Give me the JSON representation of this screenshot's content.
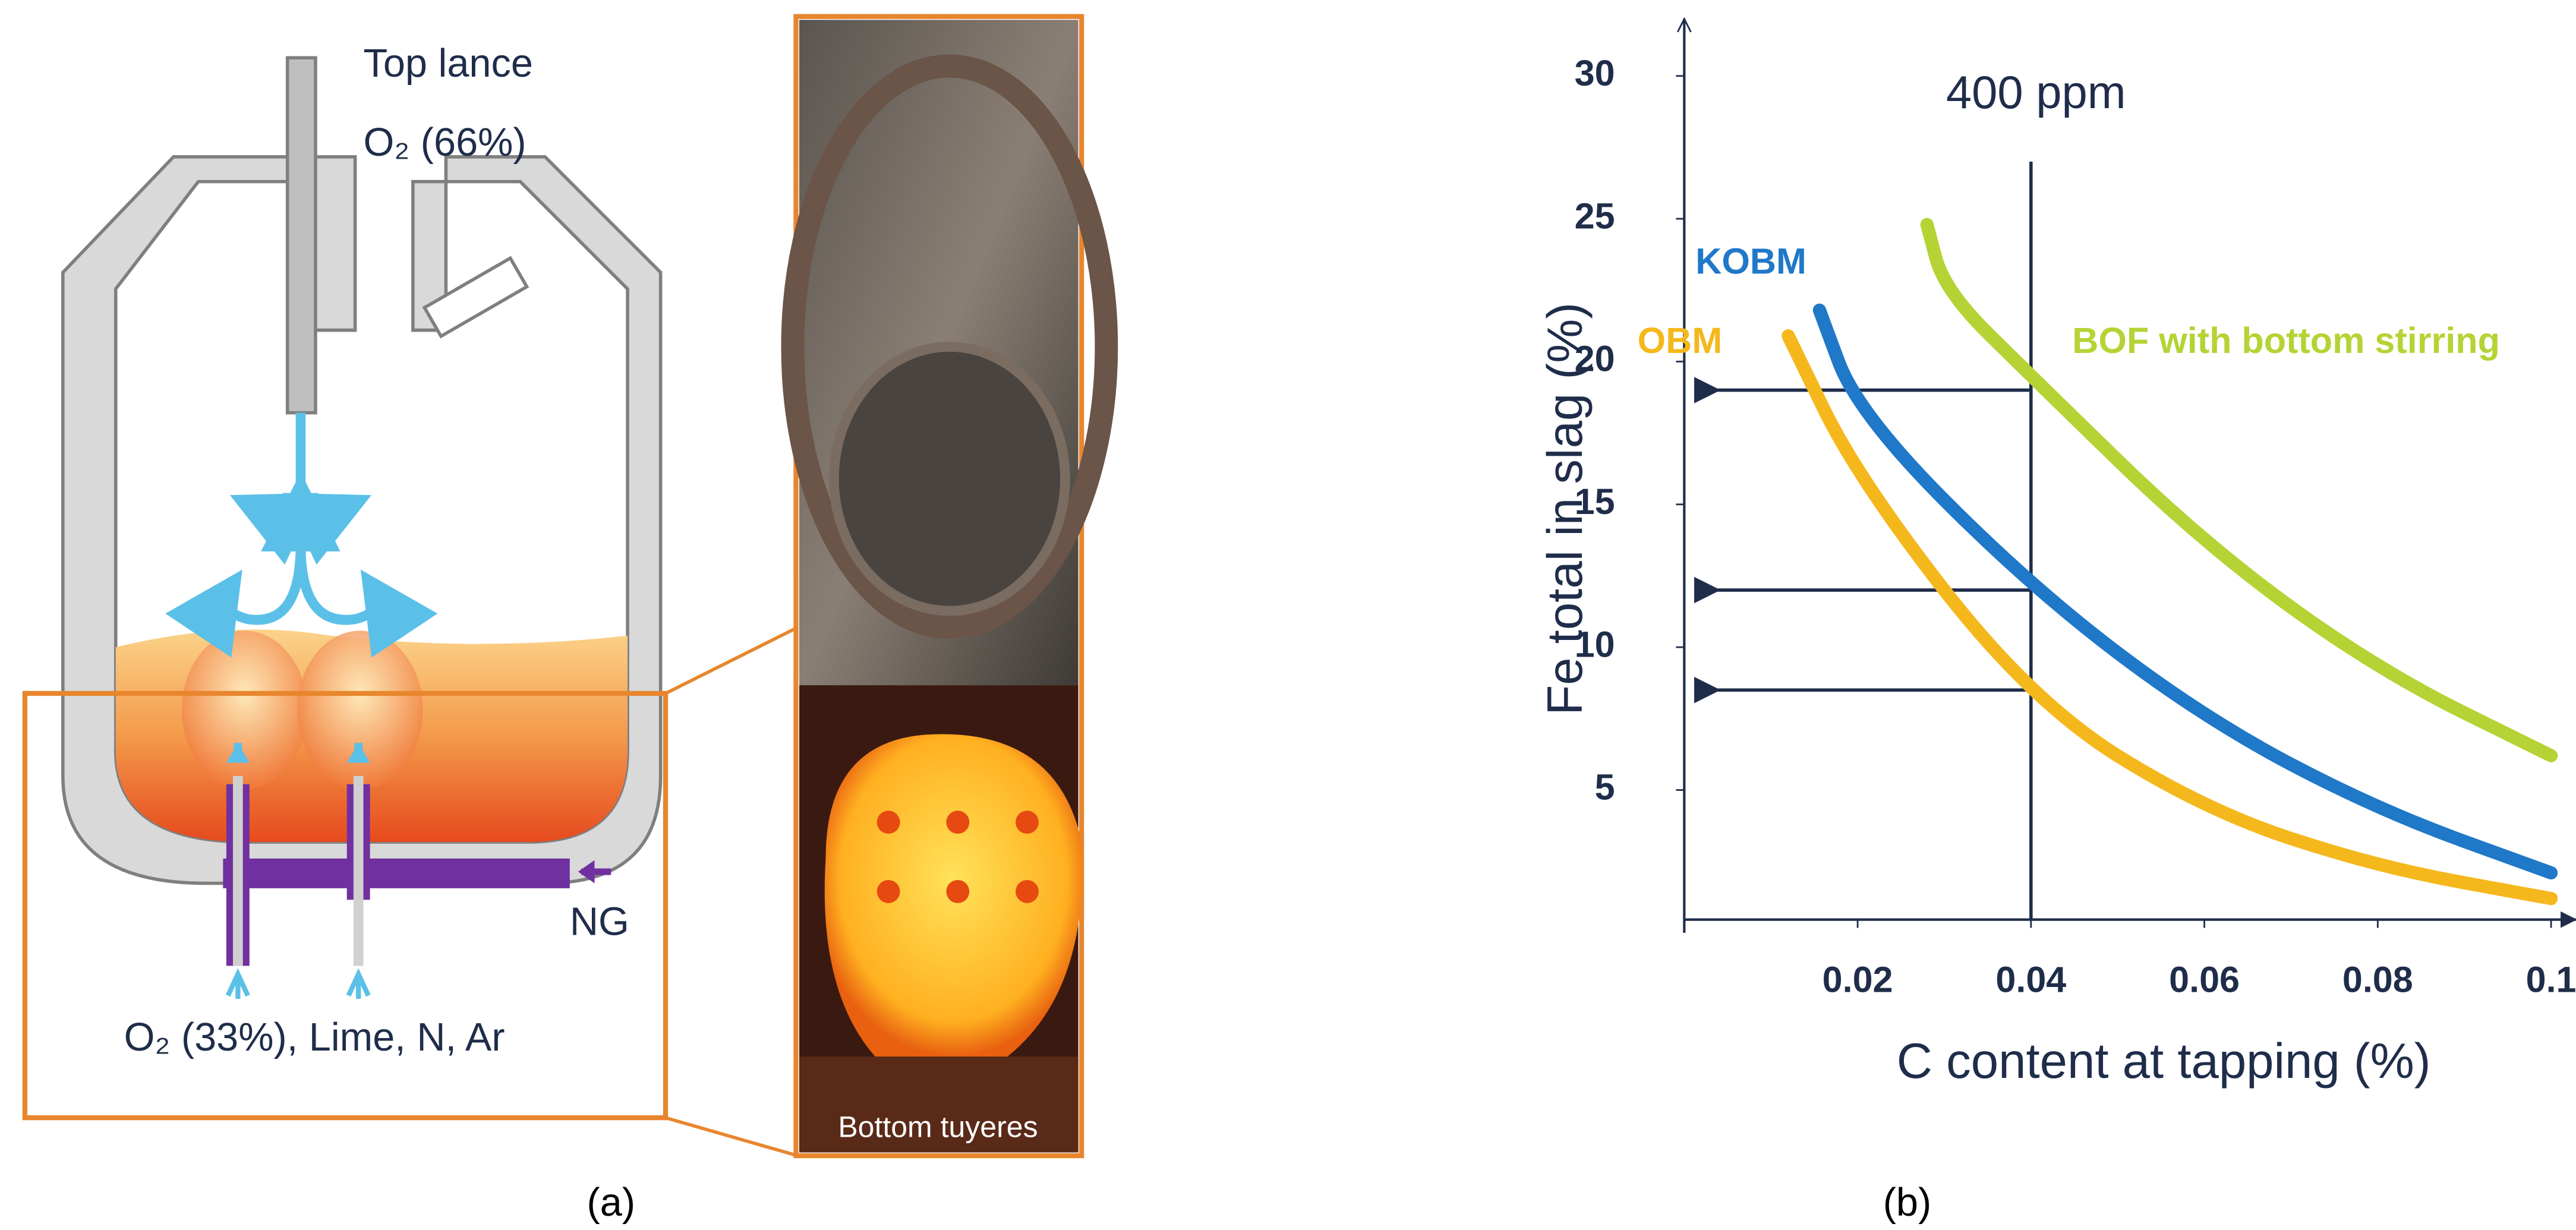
{
  "panel_a": {
    "top_label": "Top lance",
    "top_gas": "O₂ (66%)",
    "side_gas": "NG",
    "bottom_gas": "O₂ (33%), Lime, N, Ar",
    "photo_label": "Bottom tuyeres",
    "caption": "(a)"
  },
  "chart_data": {
    "type": "line",
    "xlabel": "C content at tapping (%)",
    "ylabel": "Fe total in slag (%)",
    "xlim": [
      0,
      0.103
    ],
    "ylim": [
      0,
      32
    ],
    "xticks": [
      0.02,
      0.04,
      0.06,
      0.08,
      0.1
    ],
    "yticks": [
      5,
      10,
      15,
      20,
      25,
      30
    ],
    "series": [
      {
        "name": "OBM",
        "color": "#f5b81c",
        "x": [
          0.012,
          0.02,
          0.04,
          0.06,
          0.08,
          0.1
        ],
        "values": [
          20.9,
          15.9,
          8.1,
          4.3,
          2.3,
          1.2
        ]
      },
      {
        "name": "KOBM",
        "color": "#1f78c8",
        "x": [
          0.0156,
          0.02,
          0.04,
          0.06,
          0.08,
          0.1
        ],
        "values": [
          21.8,
          18.2,
          12.1,
          7.5,
          4.3,
          2.1
        ]
      },
      {
        "name": "BOF with bottom stirring",
        "color": "#b5d334",
        "x": [
          0.028,
          0.03,
          0.04,
          0.06,
          0.08,
          0.1
        ],
        "values": [
          24.8,
          22.5,
          19.5,
          13.6,
          9.2,
          6.2
        ]
      }
    ],
    "vline": {
      "x": 0.04,
      "label": "400 ppm"
    },
    "arrows": [
      19,
      12,
      8.5
    ],
    "caption": "(b)"
  }
}
